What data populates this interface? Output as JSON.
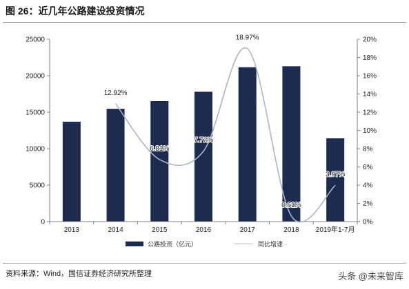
{
  "title": "图 26：近几年公路建设投资情况",
  "source": "资料来源：Wind，国信证券经济研究所整理",
  "watermark": "头条 @未来智库",
  "colors": {
    "bar": "#1c2b4f",
    "line": "#aab5c7",
    "axis": "#7f7f7f",
    "text": "#222222"
  },
  "chart_data": {
    "type": "bar",
    "categories": [
      "2013",
      "2014",
      "2015",
      "2016",
      "2017",
      "2018",
      "2019年1-7月"
    ],
    "series": [
      {
        "name": "公路投资（亿元）",
        "type": "bar",
        "axis": "left",
        "values": [
          13690,
          15460,
          16510,
          17800,
          21160,
          21290,
          11410
        ]
      },
      {
        "name": "同比增速",
        "type": "line",
        "axis": "right",
        "values": [
          null,
          12.92,
          6.81,
          7.72,
          18.97,
          0.61,
          3.97
        ],
        "labels": [
          "",
          "12.92%",
          "6.81%",
          "7.72%",
          "18.97%",
          "0.61%",
          "3.97%"
        ]
      }
    ],
    "y_left": {
      "ylim": [
        0,
        25000
      ],
      "ticks": [
        0,
        5000,
        10000,
        15000,
        20000,
        25000
      ],
      "tick_labels": [
        "0",
        "5000",
        "10000",
        "15000",
        "20000",
        "25000"
      ]
    },
    "y_right": {
      "ylim": [
        0,
        20
      ],
      "ticks": [
        0,
        2,
        4,
        6,
        8,
        10,
        12,
        14,
        16,
        18,
        20
      ],
      "tick_labels": [
        "0%",
        "2%",
        "4%",
        "6%",
        "8%",
        "10%",
        "12%",
        "14%",
        "16%",
        "18%",
        "20%"
      ]
    },
    "grid": false,
    "legend": "bottom"
  }
}
